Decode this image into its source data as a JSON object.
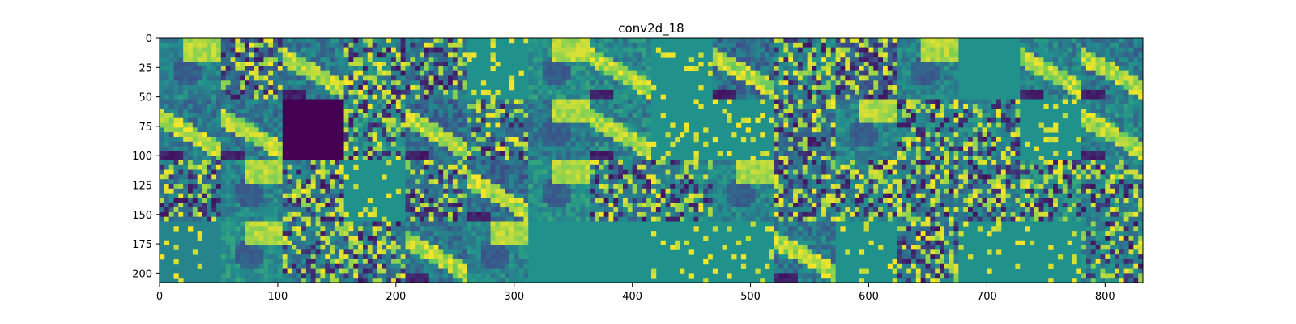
{
  "chart_data": {
    "type": "heatmap",
    "title": "conv2d_18",
    "xlabel": "",
    "ylabel": "",
    "xlim": [
      0,
      832
    ],
    "ylim": [
      208,
      0
    ],
    "x_ticks": [
      0,
      100,
      200,
      300,
      400,
      500,
      600,
      700,
      800
    ],
    "y_ticks": [
      0,
      25,
      50,
      75,
      100,
      125,
      150,
      175,
      200
    ],
    "grid": false,
    "legend": "none",
    "colormap": "viridis",
    "colormap_stops": [
      "#440154",
      "#3b528b",
      "#21918c",
      "#5ec962",
      "#fde725"
    ],
    "tile_size": 52,
    "columns": 16,
    "rows": 4,
    "panels": [
      {
        "row": 0,
        "col": 0,
        "pattern": "blob",
        "base": 0.45
      },
      {
        "row": 0,
        "col": 1,
        "pattern": "speckle",
        "base": 0.35
      },
      {
        "row": 0,
        "col": 2,
        "pattern": "subject",
        "base": 0.4
      },
      {
        "row": 0,
        "col": 3,
        "pattern": "speckle",
        "base": 0.45
      },
      {
        "row": 0,
        "col": 4,
        "pattern": "speckle",
        "base": 0.4
      },
      {
        "row": 0,
        "col": 5,
        "pattern": "sparse",
        "base": 0.5
      },
      {
        "row": 0,
        "col": 6,
        "pattern": "blob",
        "base": 0.5
      },
      {
        "row": 0,
        "col": 7,
        "pattern": "subject",
        "base": 0.45
      },
      {
        "row": 0,
        "col": 8,
        "pattern": "sparse",
        "base": 0.5
      },
      {
        "row": 0,
        "col": 9,
        "pattern": "subject",
        "base": 0.35
      },
      {
        "row": 0,
        "col": 10,
        "pattern": "speckle",
        "base": 0.45
      },
      {
        "row": 0,
        "col": 11,
        "pattern": "speckle",
        "base": 0.3
      },
      {
        "row": 0,
        "col": 12,
        "pattern": "blob",
        "base": 0.45
      },
      {
        "row": 0,
        "col": 13,
        "pattern": "flat",
        "base": 0.5
      },
      {
        "row": 0,
        "col": 14,
        "pattern": "subject",
        "base": 0.45
      },
      {
        "row": 0,
        "col": 15,
        "pattern": "subject",
        "base": 0.4
      },
      {
        "row": 1,
        "col": 0,
        "pattern": "subject",
        "base": 0.4
      },
      {
        "row": 1,
        "col": 1,
        "pattern": "subject",
        "base": 0.4
      },
      {
        "row": 1,
        "col": 2,
        "pattern": "dead",
        "base": 0.0
      },
      {
        "row": 1,
        "col": 3,
        "pattern": "speckle",
        "base": 0.5
      },
      {
        "row": 1,
        "col": 4,
        "pattern": "subject",
        "base": 0.35
      },
      {
        "row": 1,
        "col": 5,
        "pattern": "speckle",
        "base": 0.4
      },
      {
        "row": 1,
        "col": 6,
        "pattern": "blob",
        "base": 0.4
      },
      {
        "row": 1,
        "col": 7,
        "pattern": "subject",
        "base": 0.45
      },
      {
        "row": 1,
        "col": 8,
        "pattern": "sparse",
        "base": 0.5
      },
      {
        "row": 1,
        "col": 9,
        "pattern": "sparse",
        "base": 0.5
      },
      {
        "row": 1,
        "col": 10,
        "pattern": "speckle",
        "base": 0.35
      },
      {
        "row": 1,
        "col": 11,
        "pattern": "blob",
        "base": 0.45
      },
      {
        "row": 1,
        "col": 12,
        "pattern": "speckle",
        "base": 0.45
      },
      {
        "row": 1,
        "col": 13,
        "pattern": "speckle",
        "base": 0.45
      },
      {
        "row": 1,
        "col": 14,
        "pattern": "sparse",
        "base": 0.5
      },
      {
        "row": 1,
        "col": 15,
        "pattern": "subject",
        "base": 0.45
      },
      {
        "row": 2,
        "col": 0,
        "pattern": "speckle",
        "base": 0.4
      },
      {
        "row": 2,
        "col": 1,
        "pattern": "blob",
        "base": 0.45
      },
      {
        "row": 2,
        "col": 2,
        "pattern": "speckle",
        "base": 0.4
      },
      {
        "row": 2,
        "col": 3,
        "pattern": "sparse",
        "base": 0.5
      },
      {
        "row": 2,
        "col": 4,
        "pattern": "speckle",
        "base": 0.4
      },
      {
        "row": 2,
        "col": 5,
        "pattern": "subject",
        "base": 0.35
      },
      {
        "row": 2,
        "col": 6,
        "pattern": "blob",
        "base": 0.5
      },
      {
        "row": 2,
        "col": 7,
        "pattern": "speckle",
        "base": 0.4
      },
      {
        "row": 2,
        "col": 8,
        "pattern": "speckle",
        "base": 0.45
      },
      {
        "row": 2,
        "col": 9,
        "pattern": "blob",
        "base": 0.45
      },
      {
        "row": 2,
        "col": 10,
        "pattern": "speckle",
        "base": 0.4
      },
      {
        "row": 2,
        "col": 11,
        "pattern": "speckle",
        "base": 0.45
      },
      {
        "row": 2,
        "col": 12,
        "pattern": "speckle",
        "base": 0.4
      },
      {
        "row": 2,
        "col": 13,
        "pattern": "speckle",
        "base": 0.4
      },
      {
        "row": 2,
        "col": 14,
        "pattern": "speckle",
        "base": 0.5
      },
      {
        "row": 2,
        "col": 15,
        "pattern": "speckle",
        "base": 0.45
      },
      {
        "row": 3,
        "col": 0,
        "pattern": "sparse",
        "base": 0.45
      },
      {
        "row": 3,
        "col": 1,
        "pattern": "blob",
        "base": 0.5
      },
      {
        "row": 3,
        "col": 2,
        "pattern": "speckle",
        "base": 0.4
      },
      {
        "row": 3,
        "col": 3,
        "pattern": "speckle",
        "base": 0.4
      },
      {
        "row": 3,
        "col": 4,
        "pattern": "subject",
        "base": 0.4
      },
      {
        "row": 3,
        "col": 5,
        "pattern": "blob",
        "base": 0.45
      },
      {
        "row": 3,
        "col": 6,
        "pattern": "flat",
        "base": 0.5
      },
      {
        "row": 3,
        "col": 7,
        "pattern": "flat",
        "base": 0.5
      },
      {
        "row": 3,
        "col": 8,
        "pattern": "sparse",
        "base": 0.5
      },
      {
        "row": 3,
        "col": 9,
        "pattern": "sparse",
        "base": 0.5
      },
      {
        "row": 3,
        "col": 10,
        "pattern": "subject",
        "base": 0.4
      },
      {
        "row": 3,
        "col": 11,
        "pattern": "sparse",
        "base": 0.5
      },
      {
        "row": 3,
        "col": 12,
        "pattern": "speckle",
        "base": 0.4
      },
      {
        "row": 3,
        "col": 13,
        "pattern": "sparse",
        "base": 0.5
      },
      {
        "row": 3,
        "col": 14,
        "pattern": "sparse",
        "base": 0.5
      },
      {
        "row": 3,
        "col": 15,
        "pattern": "speckle",
        "base": 0.45
      }
    ]
  }
}
